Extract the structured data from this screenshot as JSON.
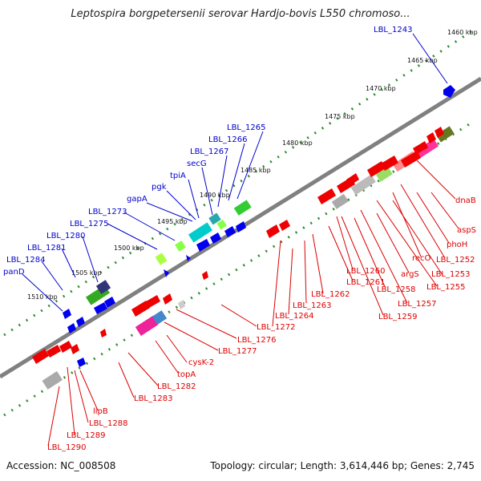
{
  "title": "Leptospira borgpetersenii serovar Hardjo-bovis L550 chromoso...",
  "footer": {
    "accession": "Accession: NC_008508",
    "summary": "Topology: circular; Length: 3,614,446 bp; Genes: 2,745"
  },
  "colors": {
    "forward_label": "#0000cc",
    "reverse_label": "#dd0000",
    "backbone": "#808080",
    "tick": "#2e8b2e"
  },
  "kbp_labels": [
    "1460 kbp",
    "1465 kbp",
    "1470 kbp",
    "1475 kbp",
    "1480 kbp",
    "1485 kbp",
    "1490 kbp",
    "1495 kbp",
    "1500 kbp",
    "1505 kbp",
    "1510 kbp"
  ],
  "forward_labels": [
    "LBL_1243",
    "LBL_1265",
    "LBL_1266",
    "LBL_1267",
    "secG",
    "tpiA",
    "pgk",
    "gapA",
    "LBL_1273",
    "LBL_1275",
    "LBL_1280",
    "LBL_1281",
    "LBL_1284",
    "panD"
  ],
  "reverse_labels": [
    "dnaB",
    "aspS",
    "phoH",
    "LBL_1252",
    "recO",
    "LBL_1253",
    "LBL_1255",
    "argS",
    "LBL_1257",
    "LBL_1258",
    "LBL_1259",
    "LBL_1260",
    "LBL_1261",
    "LBL_1262",
    "LBL_1263",
    "LBL_1264",
    "LBL_1272",
    "LBL_1276",
    "LBL_1277",
    "cysK-2",
    "topA",
    "LBL_1282",
    "LBL_1283",
    "lipB",
    "LBL_1288",
    "LBL_1289",
    "LBL_1290"
  ]
}
